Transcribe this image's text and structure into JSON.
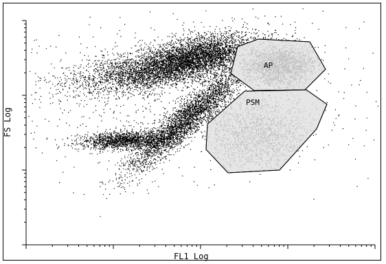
{
  "chart_data": {
    "type": "scatter",
    "xlabel": "FL1 Log",
    "ylabel": "FS Log",
    "x_scale": "log",
    "y_scale": "log",
    "grid": false,
    "colors": {
      "events": "#000000",
      "gated_events": "#bdbdbd",
      "gate_fill": "#e6e6e6",
      "gate_stroke": "#000000"
    },
    "gates": [
      {
        "name": "AP"
      },
      {
        "name": "PSM"
      }
    ]
  }
}
